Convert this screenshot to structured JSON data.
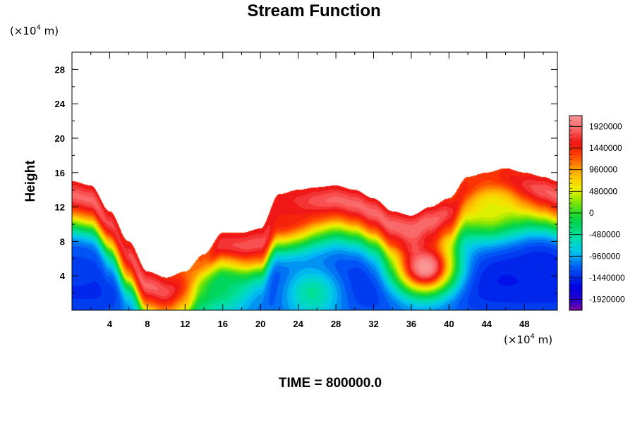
{
  "chart_data": {
    "type": "heatmap",
    "title": "Stream Function",
    "ylabel": "Height",
    "xlabel": "",
    "x_unit_prefix": "(×10",
    "x_unit_exp": "4",
    "x_unit_suffix": " m)",
    "y_unit_prefix": "(×10",
    "y_unit_exp": "4",
    "y_unit_suffix": " m)",
    "xlim": [
      0,
      51.5
    ],
    "ylim": [
      0,
      30
    ],
    "x_ticks": [
      4,
      8,
      12,
      16,
      20,
      24,
      28,
      32,
      36,
      40,
      44,
      48
    ],
    "y_ticks": [
      4,
      8,
      12,
      16,
      20,
      24,
      28
    ],
    "colorbar": {
      "range": [
        -2160000,
        2160000
      ],
      "labels": [
        "1920000",
        "1440000",
        "960000",
        "480000",
        "0",
        "-480000",
        "-960000",
        "-1440000",
        "-1920000"
      ],
      "label_values": [
        1920000,
        1440000,
        960000,
        480000,
        0,
        -480000,
        -960000,
        -1440000,
        -1920000
      ]
    },
    "boundary_x": [
      0,
      2,
      4,
      6,
      8,
      10,
      12,
      14,
      16,
      18,
      20,
      22,
      24,
      26,
      28,
      30,
      32,
      34,
      36,
      38,
      40,
      42,
      44,
      46,
      48,
      50,
      51.5
    ],
    "boundary_height": [
      15,
      14.5,
      11.5,
      8,
      4.5,
      3.8,
      4.5,
      6.5,
      9,
      9,
      9.5,
      13.5,
      14,
      14.3,
      14.5,
      14,
      13,
      11.5,
      11,
      12,
      13,
      15.5,
      16,
      16.5,
      16,
      15.5,
      15
    ],
    "features": [
      {
        "x": 0.5,
        "y": 5.5,
        "value": -1300000
      },
      {
        "x": 49.5,
        "y": 5,
        "value": -1500000
      },
      {
        "x": 25.5,
        "y": 2,
        "value": -450000
      },
      {
        "x": 15.5,
        "y": 2.5,
        "value": -250000
      },
      {
        "x": 37.5,
        "y": 5,
        "value": 2400000
      },
      {
        "x": 22.5,
        "y": 11,
        "value": 1500000
      },
      {
        "x": 44.5,
        "y": 12,
        "value": 500000
      }
    ],
    "footer": "TIME = 800000.0"
  }
}
